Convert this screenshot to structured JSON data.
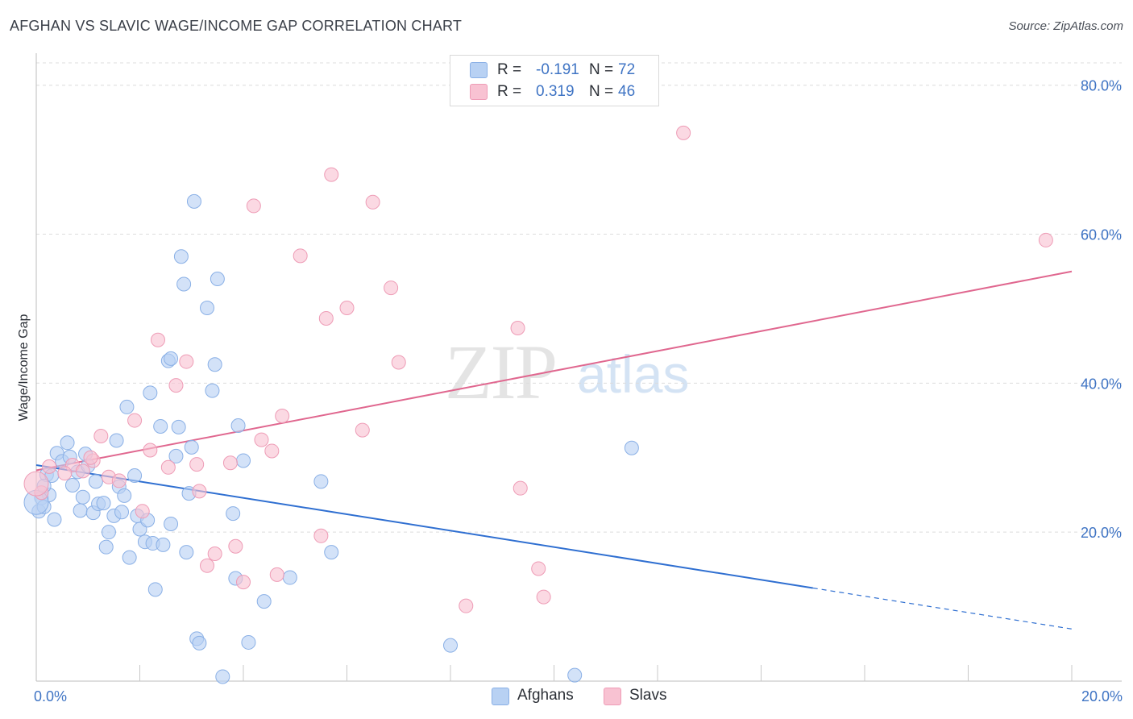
{
  "header": {
    "title": "AFGHAN VS SLAVIC WAGE/INCOME GAP CORRELATION CHART",
    "source": "Source: ZipAtlas.com"
  },
  "watermark": {
    "zip": "ZIP",
    "atlas": "atlas"
  },
  "legend": {
    "rows": [
      {
        "r_label": "R =",
        "r_value": "-0.191",
        "n_label": "N =",
        "n_value": "72",
        "color": "#b8d1f3"
      },
      {
        "r_label": "R =",
        "r_value": "0.319",
        "n_label": "N =",
        "n_value": "46",
        "color": "#f8c2d2"
      }
    ]
  },
  "bottom_legend": {
    "afghans": "Afghans",
    "slavs": "Slavs"
  },
  "colors": {
    "afghan_fill": "#b8d1f3",
    "afghan_stroke": "#8ab0e6",
    "afghan_line": "#2f6fd1",
    "slav_fill": "#f8c2d2",
    "slav_stroke": "#ee9cb6",
    "slav_line": "#e0678f",
    "tick_color": "#3f74c4"
  },
  "chart_data": {
    "type": "scatter",
    "title": "AFGHAN VS SLAVIC WAGE/INCOME GAP CORRELATION CHART",
    "xlabel": "",
    "ylabel": "Wage/Income Gap",
    "xlim": [
      0,
      20
    ],
    "ylim": [
      0,
      83
    ],
    "x_ticks": [
      0,
      20
    ],
    "x_tick_labels": [
      "0.0%",
      "20.0%"
    ],
    "y_ticks": [
      20,
      40,
      60,
      80
    ],
    "y_tick_labels": [
      "20.0%",
      "40.0%",
      "60.0%",
      "80.0%"
    ],
    "grid": true,
    "legend_position": "top-center",
    "series": [
      {
        "name": "Afghans",
        "points": [
          [
            0.05,
            22.8
          ],
          [
            0.1,
            24.6
          ],
          [
            0.15,
            23.4
          ],
          [
            0.2,
            27.7
          ],
          [
            0.25,
            25.0
          ],
          [
            0.3,
            27.6
          ],
          [
            0.35,
            21.7
          ],
          [
            0.4,
            30.6
          ],
          [
            0.5,
            29.5
          ],
          [
            0.6,
            32.0
          ],
          [
            0.65,
            30.1
          ],
          [
            0.7,
            26.3
          ],
          [
            0.8,
            28.1
          ],
          [
            0.85,
            22.9
          ],
          [
            0.9,
            24.7
          ],
          [
            0.95,
            30.5
          ],
          [
            1.0,
            28.9
          ],
          [
            1.1,
            22.6
          ],
          [
            1.15,
            26.8
          ],
          [
            1.2,
            23.8
          ],
          [
            1.3,
            23.9
          ],
          [
            1.4,
            20.0
          ],
          [
            1.5,
            22.2
          ],
          [
            1.55,
            32.3
          ],
          [
            1.6,
            26.1
          ],
          [
            1.65,
            22.7
          ],
          [
            1.7,
            24.9
          ],
          [
            1.75,
            36.8
          ],
          [
            1.8,
            16.6
          ],
          [
            1.9,
            27.6
          ],
          [
            1.95,
            22.2
          ],
          [
            2.0,
            20.4
          ],
          [
            2.1,
            18.7
          ],
          [
            2.15,
            21.6
          ],
          [
            2.2,
            38.7
          ],
          [
            2.25,
            18.5
          ],
          [
            2.3,
            12.3
          ],
          [
            2.4,
            34.2
          ],
          [
            2.45,
            18.3
          ],
          [
            2.55,
            43.0
          ],
          [
            2.6,
            21.1
          ],
          [
            2.7,
            30.2
          ],
          [
            2.75,
            34.1
          ],
          [
            2.8,
            57.0
          ],
          [
            2.85,
            53.3
          ],
          [
            2.9,
            17.3
          ],
          [
            2.95,
            25.2
          ],
          [
            3.0,
            31.4
          ],
          [
            3.05,
            64.4
          ],
          [
            3.1,
            5.7
          ],
          [
            3.15,
            5.1
          ],
          [
            3.3,
            50.1
          ],
          [
            3.4,
            39.0
          ],
          [
            3.45,
            42.5
          ],
          [
            3.5,
            54.0
          ],
          [
            3.6,
            0.6
          ],
          [
            3.8,
            22.5
          ],
          [
            3.85,
            13.8
          ],
          [
            3.9,
            34.3
          ],
          [
            4.0,
            29.6
          ],
          [
            4.1,
            5.2
          ],
          [
            4.4,
            10.7
          ],
          [
            4.9,
            13.9
          ],
          [
            5.5,
            26.8
          ],
          [
            5.7,
            17.3
          ],
          [
            8.0,
            4.8
          ],
          [
            10.4,
            0.8
          ],
          [
            11.5,
            31.3
          ],
          [
            0.0,
            24.0
          ],
          [
            0.15,
            26.2
          ],
          [
            1.35,
            18.0
          ],
          [
            2.6,
            43.3
          ]
        ]
      },
      {
        "name": "Slavs",
        "points": [
          [
            0.1,
            25.3
          ],
          [
            0.25,
            28.8
          ],
          [
            0.7,
            29.0
          ],
          [
            0.9,
            28.2
          ],
          [
            1.1,
            29.6
          ],
          [
            1.25,
            32.9
          ],
          [
            1.4,
            27.4
          ],
          [
            1.6,
            26.9
          ],
          [
            1.9,
            35.0
          ],
          [
            2.05,
            22.8
          ],
          [
            2.2,
            31.0
          ],
          [
            2.35,
            45.8
          ],
          [
            2.55,
            28.7
          ],
          [
            2.7,
            39.7
          ],
          [
            2.9,
            42.9
          ],
          [
            3.1,
            29.1
          ],
          [
            3.15,
            25.5
          ],
          [
            3.3,
            15.5
          ],
          [
            3.45,
            17.1
          ],
          [
            3.75,
            29.3
          ],
          [
            3.85,
            18.1
          ],
          [
            4.0,
            13.3
          ],
          [
            4.2,
            63.8
          ],
          [
            4.35,
            32.4
          ],
          [
            4.55,
            30.9
          ],
          [
            4.65,
            14.3
          ],
          [
            4.75,
            35.6
          ],
          [
            5.1,
            57.1
          ],
          [
            5.5,
            19.5
          ],
          [
            5.6,
            48.7
          ],
          [
            5.7,
            68.0
          ],
          [
            6.0,
            50.1
          ],
          [
            6.3,
            33.7
          ],
          [
            6.5,
            64.3
          ],
          [
            6.85,
            52.8
          ],
          [
            7.0,
            42.8
          ],
          [
            8.3,
            10.1
          ],
          [
            9.3,
            47.4
          ],
          [
            9.35,
            25.9
          ],
          [
            9.7,
            15.1
          ],
          [
            9.8,
            11.3
          ],
          [
            12.5,
            73.6
          ],
          [
            19.5,
            59.2
          ],
          [
            0.0,
            26.5
          ],
          [
            0.55,
            27.9
          ],
          [
            1.05,
            30.0
          ]
        ]
      }
    ],
    "trend_lines": [
      {
        "series": "Afghans",
        "x0": 0,
        "y0": 29.0,
        "x1": 15.0,
        "y1": 12.5,
        "x_dash_end": 20.0,
        "y_dash_end": 7.0
      },
      {
        "series": "Slavs",
        "x0": 0,
        "y0": 28.3,
        "x1": 20.0,
        "y1": 55.0
      }
    ]
  }
}
